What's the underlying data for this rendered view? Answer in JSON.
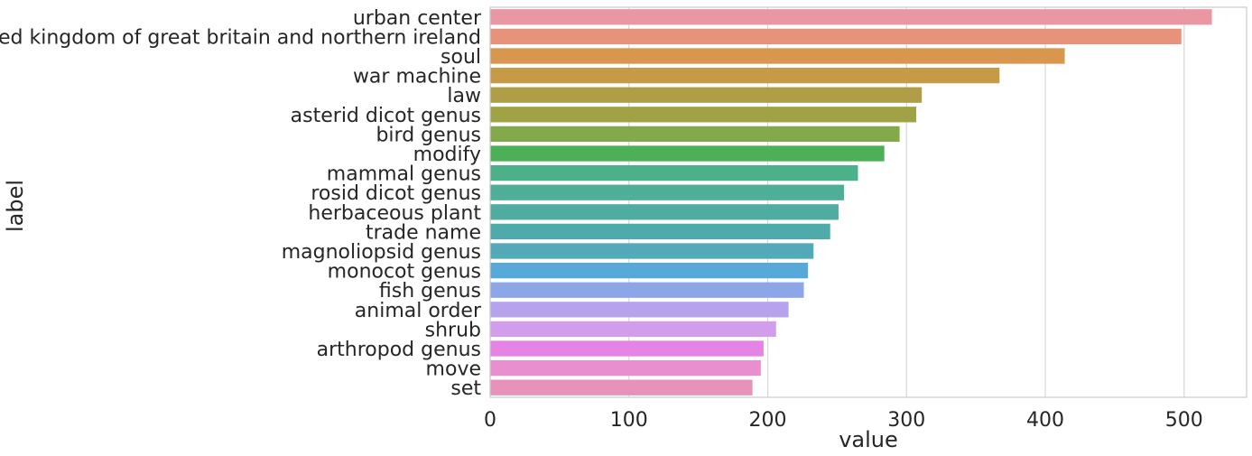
{
  "chart_data": {
    "type": "bar",
    "orientation": "horizontal",
    "xlabel": "value",
    "ylabel": "label",
    "xlim": [
      0,
      545
    ],
    "xticks": [
      0,
      100,
      200,
      300,
      400,
      500
    ],
    "grid": true,
    "categories": [
      "urban center",
      "united kingdom of great britain and northern ireland",
      "soul",
      "war machine",
      "law",
      "asterid dicot genus",
      "bird genus",
      "modify",
      "mammal genus",
      "rosid dicot genus",
      "herbaceous plant",
      "trade name",
      "magnoliopsid genus",
      "monocot genus",
      "fish genus",
      "animal order",
      "shrub",
      "arthropod genus",
      "move",
      "set"
    ],
    "values": [
      520,
      498,
      414,
      367,
      311,
      307,
      295,
      284,
      265,
      255,
      251,
      245,
      233,
      229,
      226,
      215,
      206,
      197,
      195,
      189
    ],
    "colors": [
      "#ea96a3",
      "#e9927b",
      "#d8964e",
      "#c79a46",
      "#b09e47",
      "#a0a246",
      "#84a94a",
      "#4cb057",
      "#4cb08b",
      "#4eae97",
      "#4eaca1",
      "#4faaab",
      "#52aab8",
      "#56a9d8",
      "#8ca6e8",
      "#b6a3ec",
      "#d29dea",
      "#e584e4",
      "#e98fcf",
      "#e692b9"
    ]
  }
}
